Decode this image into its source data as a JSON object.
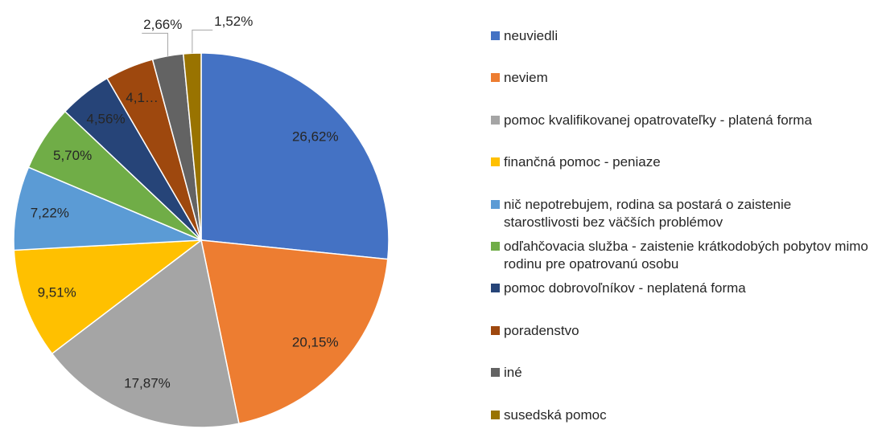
{
  "chart_data": {
    "type": "pie",
    "categories": [
      "neuviedli",
      "neviem",
      "pomoc kvalifikovanej opatrovateľky - platená forma",
      "finančná pomoc - peniaze",
      "nič nepotrebujem, rodina sa postará o zaistenie starostlivosti bez väčších problémov",
      "odľahčovacia služba - zaistenie krátkodobých pobytov mimo rodinu pre opatrovanú osobu",
      "pomoc dobrovoľníkov - neplatená forma",
      "poradenstvo",
      "iné",
      "susedská pomoc"
    ],
    "values": [
      26.62,
      20.15,
      17.87,
      9.51,
      7.22,
      5.7,
      4.56,
      4.19,
      2.66,
      1.52
    ],
    "value_labels": [
      "26,62%",
      "20,15%",
      "17,87%",
      "9,51%",
      "7,22%",
      "5,70%",
      "4,56%",
      "4,1…",
      "2,66%",
      "1,52%"
    ],
    "colors": [
      "#4472c4",
      "#ed7d31",
      "#a5a5a5",
      "#ffc000",
      "#5b9bd5",
      "#70ad47",
      "#264478",
      "#9e480e",
      "#636363",
      "#997300"
    ],
    "legend": "right"
  }
}
